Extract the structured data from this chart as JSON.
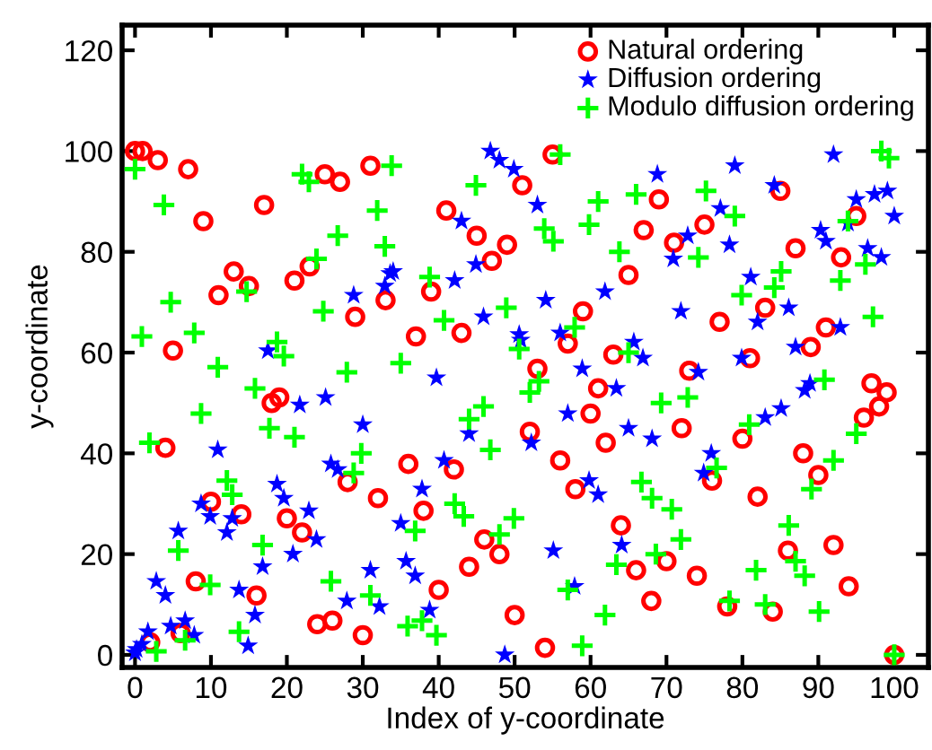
{
  "chart_data": {
    "type": "scatter",
    "xlabel": "Index of y-coordinate",
    "ylabel": "y-coordinate",
    "xlim": [
      -1.7,
      104.5
    ],
    "ylim": [
      -2.5,
      125
    ],
    "xticks": [
      0,
      10,
      20,
      30,
      40,
      50,
      60,
      70,
      80,
      90,
      100
    ],
    "yticks": [
      0,
      20,
      40,
      60,
      80,
      100,
      120
    ],
    "grid": false,
    "legend": "top right",
    "series": [
      {
        "name": "Natural ordering",
        "color": "#ff0000",
        "marker": "circle",
        "x": [
          0,
          1,
          2,
          3,
          4,
          5,
          6,
          7,
          8,
          9,
          10,
          11,
          13,
          14,
          15,
          16,
          17,
          18,
          19,
          20,
          21,
          22,
          23,
          24,
          25,
          26,
          27,
          28,
          29,
          30,
          31,
          32,
          33,
          36,
          37,
          38,
          39,
          40,
          41,
          42,
          43,
          44,
          45,
          46,
          47,
          48,
          49,
          50,
          51,
          52,
          53,
          54,
          55,
          56,
          57,
          58,
          59,
          60,
          61,
          62,
          63,
          64,
          65,
          66,
          67,
          68,
          69,
          70,
          71,
          72,
          73,
          74,
          75,
          76,
          77,
          78,
          80,
          81,
          82,
          83,
          84,
          85,
          86,
          87,
          88,
          89,
          90,
          91,
          92,
          93,
          94,
          95,
          96,
          97,
          98,
          99,
          100
        ],
        "values": [
          100.0,
          100.0,
          2.5,
          98.2,
          41.1,
          60.4,
          4.3,
          96.4,
          14.6,
          86.1,
          30.4,
          71.4,
          76.1,
          27.9,
          73.2,
          11.8,
          89.3,
          50.0,
          51.1,
          27.1,
          74.3,
          24.3,
          77.1,
          6.1,
          95.4,
          6.8,
          93.9,
          34.3,
          67.1,
          3.9,
          97.1,
          31.1,
          70.4,
          37.9,
          63.2,
          28.6,
          72.1,
          12.9,
          88.2,
          36.8,
          63.9,
          17.5,
          83.2,
          22.9,
          78.2,
          20.0,
          81.4,
          7.9,
          93.2,
          44.3,
          56.8,
          1.4,
          99.3,
          38.6,
          61.8,
          32.9,
          68.2,
          47.9,
          52.9,
          42.1,
          59.6,
          25.7,
          75.4,
          16.8,
          84.3,
          10.7,
          90.4,
          18.6,
          81.8,
          45.0,
          56.4,
          15.7,
          85.4,
          34.6,
          66.1,
          9.6,
          42.9,
          58.9,
          31.4,
          68.9,
          8.6,
          92.1,
          20.7,
          80.7,
          40.0,
          61.1,
          35.7,
          65.0,
          21.8,
          78.9,
          13.6,
          87.1,
          47.1,
          53.9,
          49.3,
          52.1,
          0
        ]
      },
      {
        "name": "Diffusion ordering",
        "color": "#0000ff",
        "marker": "star",
        "x": [
          0,
          0.2,
          0.9,
          1.7,
          2.8,
          4.0,
          4.7,
          5.7,
          6.6,
          7.8,
          8.7,
          9.9,
          10.9,
          12.1,
          12.8,
          13.7,
          14.9,
          15.8,
          16.8,
          17.5,
          18.7,
          19.6,
          20.8,
          21.7,
          22.9,
          23.9,
          25.1,
          25.8,
          26.7,
          27.9,
          28.8,
          30.0,
          31.0,
          32.2,
          32.9,
          33.6,
          34.0,
          35.0,
          35.7,
          36.9,
          37.8,
          38.8,
          39.7,
          40.7,
          42.1,
          43.0,
          44.0,
          44.9,
          45.9,
          46.8,
          48.0,
          48.7,
          49.9,
          50.6,
          50.8,
          52.2,
          53.0,
          54.1,
          55.1,
          56.0,
          57.0,
          57.9,
          58.9,
          59.8,
          61.0,
          61.9,
          63.4,
          64.1,
          65.0,
          65.7,
          66.9,
          68.1,
          68.8,
          70.9,
          71.9,
          72.8,
          74.2,
          74.9,
          75.9,
          77.1,
          78.3,
          79.0,
          79.9,
          81.1,
          82.0,
          83.0,
          84.2,
          85.1,
          86.1,
          87.0,
          88.2,
          88.9,
          90.3,
          91.0,
          92.0,
          92.9,
          93.9,
          95.0,
          96.5,
          97.4,
          98.3,
          99.1,
          100.0
        ],
        "values": [
          0.4,
          1.1,
          2.1,
          4.6,
          14.6,
          11.8,
          5.7,
          24.6,
          6.8,
          3.9,
          30.0,
          27.5,
          40.7,
          24.3,
          27.1,
          12.9,
          1.8,
          7.9,
          17.5,
          60.4,
          33.9,
          31.1,
          20.0,
          49.6,
          28.6,
          22.9,
          51.1,
          37.9,
          36.8,
          10.7,
          71.4,
          45.7,
          16.8,
          9.6,
          73.2,
          75.7,
          76.1,
          26.1,
          18.6,
          15.7,
          32.9,
          8.9,
          55.0,
          38.6,
          74.3,
          86.1,
          43.9,
          77.5,
          67.1,
          100.0,
          98.2,
          0,
          96.4,
          63.6,
          62.5,
          42.1,
          89.3,
          70.4,
          20.7,
          63.9,
          47.9,
          13.6,
          56.8,
          34.6,
          31.8,
          72.1,
          52.9,
          21.8,
          45.0,
          62.1,
          58.9,
          42.9,
          95.4,
          78.6,
          68.2,
          83.2,
          56.1,
          36.1,
          40.0,
          88.6,
          81.4,
          97.1,
          58.9,
          75.0,
          66.1,
          47.1,
          93.2,
          48.9,
          68.9,
          61.1,
          52.5,
          53.9,
          84.3,
          82.1,
          99.3,
          65.0,
          85.7,
          90.4,
          80.7,
          91.4,
          78.9,
          92.1,
          87.1
        ]
      },
      {
        "name": "Modulo diffusion ordering",
        "color": "#00ff00",
        "marker": "cross",
        "x": [
          0,
          0.9,
          1.9,
          2.8,
          3.8,
          4.7,
          5.7,
          6.6,
          7.8,
          8.7,
          9.9,
          10.9,
          12.1,
          12.8,
          13.7,
          14.7,
          15.8,
          16.8,
          17.7,
          18.7,
          19.6,
          21.0,
          22.0,
          22.9,
          23.9,
          24.8,
          25.8,
          26.7,
          27.9,
          28.8,
          29.8,
          31.0,
          31.9,
          32.9,
          33.8,
          35.0,
          35.9,
          36.9,
          37.8,
          38.8,
          39.7,
          40.7,
          42.1,
          43.3,
          44.0,
          44.9,
          45.9,
          46.8,
          48.0,
          48.9,
          49.9,
          50.6,
          52.0,
          53.2,
          53.9,
          55.1,
          56.0,
          57.0,
          57.9,
          58.9,
          59.8,
          61.0,
          61.9,
          63.4,
          63.8,
          65.0,
          66.0,
          66.7,
          68.1,
          68.6,
          69.3,
          70.7,
          71.9,
          72.8,
          74.2,
          75.2,
          76.6,
          78.3,
          79.0,
          79.9,
          80.9,
          81.8,
          83.0,
          84.2,
          85.1,
          86.1,
          87.0,
          88.2,
          89.1,
          90.1,
          90.8,
          92.0,
          92.9,
          93.9,
          95.0,
          96.2,
          97.2,
          98.3,
          99.3,
          100.0
        ],
        "values": [
          96.4,
          63.2,
          42.1,
          0.7,
          89.3,
          70.0,
          20.7,
          2.9,
          63.9,
          47.9,
          13.9,
          57.1,
          34.6,
          31.8,
          4.6,
          72.1,
          52.9,
          21.8,
          45.0,
          62.1,
          59.3,
          43.2,
          95.4,
          93.9,
          78.6,
          68.2,
          14.6,
          83.2,
          56.1,
          36.1,
          40.0,
          11.8,
          88.2,
          81.1,
          97.1,
          57.9,
          5.7,
          24.6,
          6.8,
          75.0,
          3.9,
          66.4,
          30.0,
          27.5,
          46.8,
          93.2,
          49.3,
          40.7,
          23.9,
          68.9,
          27.1,
          60.7,
          52.1,
          54.3,
          84.6,
          82.1,
          99.3,
          12.9,
          65.0,
          1.8,
          85.4,
          90.0,
          7.9,
          17.9,
          80.0,
          60.0,
          91.4,
          34.3,
          31.1,
          20.0,
          50.0,
          28.9,
          22.9,
          51.1,
          78.9,
          92.1,
          37.1,
          10.7,
          87.1,
          71.4,
          45.7,
          16.8,
          10.0,
          72.9,
          76.1,
          25.7,
          18.6,
          15.7,
          32.9,
          8.6,
          54.6,
          38.6,
          74.3,
          86.1,
          43.9,
          77.5,
          67.1,
          100.0,
          98.6,
          0
        ]
      }
    ]
  }
}
